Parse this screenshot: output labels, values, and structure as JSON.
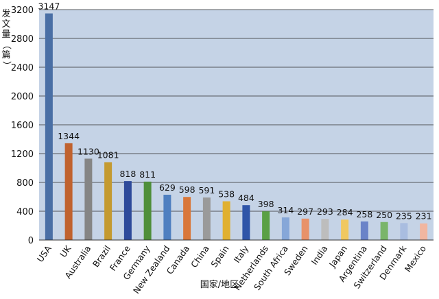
{
  "chart_data": {
    "type": "bar",
    "ylabel": "发文量（篇）",
    "xlabel": "国家/地区",
    "ylim": [
      0,
      3200
    ],
    "yticks": [
      0,
      400,
      800,
      1200,
      1600,
      2000,
      2400,
      2800,
      3200
    ],
    "grid": true,
    "legend": "none",
    "categories": [
      "USA",
      "UK",
      "Australia",
      "Brazil",
      "France",
      "Germany",
      "New Zealand",
      "Canada",
      "China",
      "Spain",
      "Italy",
      "Netherlands",
      "South Africa",
      "Sweden",
      "India",
      "Japan",
      "Argentina",
      "Switzerland",
      "Denmark",
      "Mexico"
    ],
    "values": [
      3147,
      1344,
      1130,
      1081,
      818,
      811,
      629,
      598,
      591,
      538,
      484,
      398,
      314,
      297,
      293,
      284,
      258,
      250,
      235,
      231
    ],
    "colors": [
      "#4a6fa5",
      "#c0622f",
      "#858585",
      "#c49a30",
      "#2e4a9a",
      "#4f8f3a",
      "#4f7fc0",
      "#d9773a",
      "#9a9a9a",
      "#e0b030",
      "#2f55a8",
      "#5aa045",
      "#86a7d8",
      "#e8926a",
      "#bdbdbd",
      "#f0c860",
      "#6a83c8",
      "#7ab56a",
      "#a9bde0",
      "#f1b6a0"
    ],
    "plot_background": "#c5d3e6"
  }
}
